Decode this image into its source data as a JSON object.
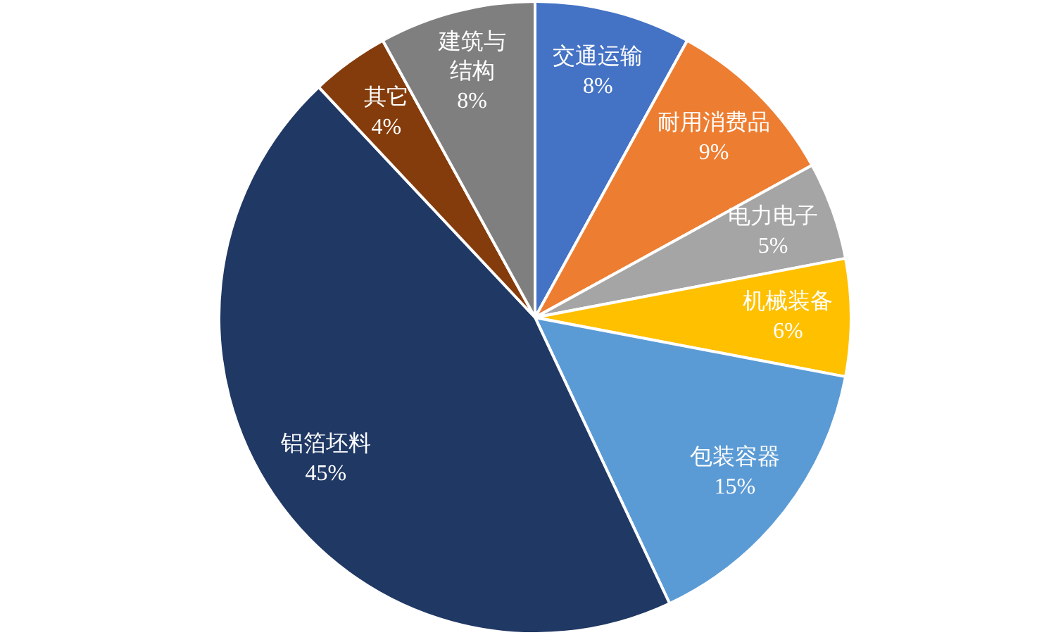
{
  "chart_data": {
    "type": "pie",
    "categories": [
      "交通运输",
      "耐用消费品",
      "电力电子",
      "机械装备",
      "包装容器",
      "铝箔坯料",
      "其它",
      "建筑与结构"
    ],
    "values": [
      8,
      9,
      5,
      6,
      15,
      45,
      4,
      8
    ],
    "value_labels": [
      "8%",
      "9%",
      "5%",
      "6%",
      "15%",
      "45%",
      "4%",
      "8%"
    ],
    "colors": [
      "#4472c4",
      "#ed7d31",
      "#a5a5a5",
      "#ffc000",
      "#5b9bd5",
      "#203864",
      "#843c0c",
      "#7f7f7f"
    ],
    "legend": false
  }
}
